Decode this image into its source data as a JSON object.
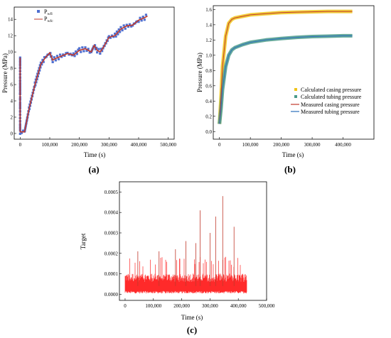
{
  "panels": [
    {
      "letter": "(a)"
    },
    {
      "letter": "(b)"
    },
    {
      "letter": "(c)"
    }
  ],
  "chart_data": [
    {
      "id": "a",
      "type": "scatter",
      "xlabel": "Time (s)",
      "ylabel": "Pressure (MPa)",
      "xlim": [
        -20000,
        520000
      ],
      "ylim": [
        -0.7,
        15.5
      ],
      "xticks": [
        0,
        100000,
        200000,
        300000,
        400000,
        500000
      ],
      "xtick_labels": [
        "0",
        "100,000",
        "200,000",
        "300,000",
        "400,000",
        "500,000"
      ],
      "yticks": [
        0,
        2,
        4,
        6,
        8,
        10,
        12,
        14
      ],
      "ytick_labels": [
        "0",
        "2",
        "4",
        "6",
        "8",
        "10",
        "12",
        "14"
      ],
      "legend": {
        "position": "top-left"
      },
      "series": [
        {
          "name": "P",
          "sub": "wfl",
          "kind": "markers",
          "color": "#4f6fd0",
          "x": [
            0,
            0,
            0,
            0,
            0,
            0,
            0,
            0,
            5000,
            15000,
            30000,
            50000,
            70000,
            85000,
            100000,
            110000,
            120000,
            140000,
            160000,
            180000,
            200000,
            220000,
            240000,
            250000,
            260000,
            270000,
            280000,
            300000,
            320000,
            340000,
            360000,
            380000,
            400000,
            420000,
            430000
          ],
          "y": [
            9.3,
            5.2,
            4.6,
            4.0,
            3.0,
            2.0,
            1.0,
            0.2,
            0.2,
            0.2,
            3.0,
            6.0,
            8.5,
            9.3,
            9.9,
            9.0,
            9.2,
            9.5,
            9.8,
            9.6,
            10.2,
            10.4,
            10.0,
            10.8,
            10.2,
            10.0,
            10.5,
            11.8,
            12.0,
            12.8,
            13.2,
            13.3,
            13.9,
            14.2,
            14.4
          ]
        },
        {
          "name": "P",
          "sub": "wfc",
          "kind": "line",
          "color": "#c0392b",
          "x": [
            0,
            0,
            5000,
            15000,
            30000,
            50000,
            70000,
            85000,
            100000,
            110000,
            120000,
            140000,
            160000,
            180000,
            200000,
            220000,
            240000,
            250000,
            260000,
            270000,
            280000,
            300000,
            320000,
            340000,
            360000,
            380000,
            400000,
            420000,
            430000
          ],
          "y": [
            9.3,
            0.2,
            0.2,
            0.2,
            3.0,
            6.0,
            8.5,
            9.3,
            9.9,
            9.0,
            9.2,
            9.5,
            9.8,
            9.6,
            10.2,
            10.4,
            10.0,
            10.8,
            10.2,
            10.0,
            10.5,
            11.8,
            12.0,
            12.8,
            13.2,
            13.3,
            13.9,
            14.2,
            14.4
          ]
        }
      ]
    },
    {
      "id": "b",
      "type": "line",
      "xlabel": "Time (s)",
      "ylabel": "Pressure (MPa)",
      "xlim": [
        -20000,
        500000
      ],
      "ylim": [
        -0.1,
        1.65
      ],
      "xticks": [
        0,
        100000,
        200000,
        300000,
        400000
      ],
      "xtick_labels": [
        "0",
        "100,000",
        "200,000",
        "300,000",
        "400,000"
      ],
      "yticks": [
        0,
        0.2,
        0.4,
        0.6,
        0.8,
        1.0,
        1.2,
        1.4,
        1.6
      ],
      "ytick_labels": [
        "0.0",
        "0.2",
        "0.4",
        "0.6",
        "0.8",
        "1.0",
        "1.2",
        "1.4",
        "1.6"
      ],
      "legend": {
        "position": "bottom-right"
      },
      "series": [
        {
          "name": "Calculated casing pressure",
          "kind": "band",
          "color": "#f0c419",
          "x": [
            0,
            5000,
            10000,
            20000,
            30000,
            40000,
            50000,
            75000,
            100000,
            150000,
            200000,
            250000,
            300000,
            350000,
            400000,
            430000
          ],
          "y": [
            0.1,
            0.45,
            0.85,
            1.25,
            1.42,
            1.47,
            1.49,
            1.51,
            1.53,
            1.545,
            1.56,
            1.565,
            1.57,
            1.575,
            1.575,
            1.575
          ]
        },
        {
          "name": "Calculated tubing pressure",
          "kind": "band",
          "color": "#4a9a8a",
          "x": [
            0,
            5000,
            10000,
            20000,
            30000,
            40000,
            50000,
            75000,
            100000,
            150000,
            200000,
            250000,
            300000,
            350000,
            400000,
            430000
          ],
          "y": [
            0.1,
            0.3,
            0.55,
            0.85,
            1.0,
            1.07,
            1.1,
            1.14,
            1.17,
            1.2,
            1.22,
            1.235,
            1.245,
            1.25,
            1.255,
            1.255
          ]
        },
        {
          "name": "Measured casing pressure",
          "kind": "line",
          "color": "#c0392b",
          "x": [
            0,
            5000,
            10000,
            20000,
            30000,
            40000,
            50000,
            75000,
            100000,
            150000,
            200000,
            250000,
            300000,
            350000,
            400000,
            430000
          ],
          "y": [
            0.1,
            0.45,
            0.85,
            1.25,
            1.42,
            1.47,
            1.49,
            1.51,
            1.53,
            1.545,
            1.56,
            1.565,
            1.57,
            1.575,
            1.575,
            1.575
          ]
        },
        {
          "name": "Measured tubing pressure",
          "kind": "line",
          "color": "#2a6ebb",
          "x": [
            0,
            5000,
            10000,
            20000,
            30000,
            40000,
            50000,
            75000,
            100000,
            150000,
            200000,
            250000,
            300000,
            350000,
            400000,
            430000
          ],
          "y": [
            0.1,
            0.3,
            0.55,
            0.85,
            1.0,
            1.07,
            1.1,
            1.14,
            1.17,
            1.2,
            1.22,
            1.235,
            1.245,
            1.25,
            1.255,
            1.255
          ]
        }
      ]
    },
    {
      "id": "c",
      "type": "line",
      "xlabel": "Time (s)",
      "ylabel": "Target",
      "xlim": [
        -20000,
        500000
      ],
      "ylim": [
        -3e-05,
        0.00055
      ],
      "xticks": [
        0,
        100000,
        200000,
        300000,
        400000,
        500000
      ],
      "xtick_labels": [
        "0",
        "100,000",
        "200,000",
        "300,000",
        "400,000",
        "500,000"
      ],
      "yticks": [
        0,
        0.0001,
        0.0002,
        0.0003,
        0.0004,
        0.0005
      ],
      "ytick_labels": [
        "0.0000",
        "0.0001",
        "0.0002",
        "0.0003",
        "0.0004",
        "0.0005"
      ],
      "series": [
        {
          "kind": "noise",
          "color": "#ff2a2a",
          "x_range": [
            0,
            430000
          ],
          "baseline": 7e-05,
          "floor": 2e-05,
          "spikes": [
            [
              45000,
              0.00021
            ],
            [
              120000,
              0.00021
            ],
            [
              178000,
              0.00022
            ],
            [
              215000,
              0.00026
            ],
            [
              250000,
              0.00025
            ],
            [
              265000,
              0.00041
            ],
            [
              300000,
              0.0003
            ],
            [
              320000,
              0.00038
            ],
            [
              345000,
              0.00048
            ],
            [
              385000,
              0.00033
            ]
          ]
        }
      ]
    }
  ]
}
